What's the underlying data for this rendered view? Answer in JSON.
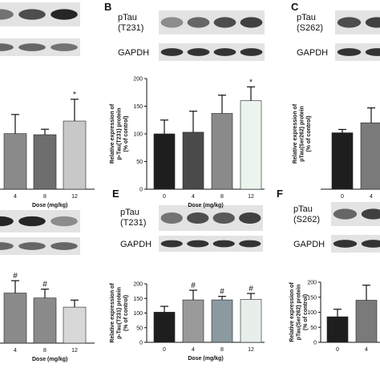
{
  "figure": {
    "panels": [
      {
        "letter": "",
        "blots": [
          "",
          ""
        ],
        "gel_bands": [
          [
            0.55,
            0.7,
            0.85
          ],
          [
            0.6,
            0.6,
            0.55
          ]
        ]
      },
      {
        "letter": "B",
        "blots": [
          "pTau\n(T231)",
          "GAPDH"
        ],
        "gel_bands": [
          [
            0.45,
            0.6,
            0.7,
            0.75
          ],
          [
            0.8,
            0.8,
            0.8,
            0.8
          ]
        ]
      },
      {
        "letter": "C",
        "blots": [
          "pTau\n(S262)",
          "GAPDH"
        ],
        "gel_bands": [
          [
            0.7,
            0.75
          ],
          [
            0.8,
            0.8
          ]
        ]
      },
      {
        "letter": "",
        "blots": [
          "",
          ""
        ],
        "gel_bands": [
          [
            0.85,
            0.85,
            0.45
          ],
          [
            0.6,
            0.6,
            0.6
          ]
        ]
      },
      {
        "letter": "E",
        "blots": [
          "pTau\n(T231)",
          "GAPDH"
        ],
        "gel_bands": [
          [
            0.55,
            0.7,
            0.65,
            0.75
          ],
          [
            0.8,
            0.8,
            0.8,
            0.8
          ]
        ]
      },
      {
        "letter": "F",
        "blots": [
          "pTau\n(S262)",
          "GAPDH"
        ],
        "gel_bands": [
          [
            0.6,
            0.75
          ],
          [
            0.8,
            0.8
          ]
        ]
      }
    ]
  },
  "chart_data": [
    {
      "type": "bar",
      "panel": "A",
      "categories": [
        "4",
        "8",
        "12"
      ],
      "values": [
        102,
        100,
        125
      ],
      "errors": [
        35,
        10,
        40
      ],
      "markers": [
        "",
        "",
        "*"
      ],
      "colors": [
        "#8a8a8a",
        "#6e6e6e",
        "#c8c8c8"
      ],
      "xlabel": "Dose (mg/kg)",
      "ylabel": "",
      "ylim": [
        0,
        200
      ],
      "ticks": []
    },
    {
      "type": "bar",
      "panel": "B",
      "categories": [
        "0",
        "4",
        "8",
        "12"
      ],
      "values": [
        100,
        103,
        137,
        160
      ],
      "errors": [
        25,
        38,
        33,
        25
      ],
      "markers": [
        "",
        "",
        "",
        "*"
      ],
      "colors": [
        "#1e1e1e",
        "#4a4a4a",
        "#8a8a8a",
        "#ecf4ee"
      ],
      "xlabel": "Dose (mg/kg)",
      "ylabel": "Relative expression of\np-Tau(T231) protein\n(% of control)",
      "ylim": [
        0,
        200
      ],
      "ticks": [
        "0",
        "50",
        "100",
        "150",
        "200"
      ]
    },
    {
      "type": "bar",
      "panel": "C",
      "categories": [
        "0",
        "4"
      ],
      "values": [
        102,
        120
      ],
      "errors": [
        6,
        27
      ],
      "markers": [
        "",
        ""
      ],
      "colors": [
        "#1e1e1e",
        "#7a7a7a"
      ],
      "xlabel": "",
      "ylabel": "Relative expression of\npTau(Ser262) protein\n(% of control)",
      "ylim": [
        0,
        200
      ],
      "ticks": []
    },
    {
      "type": "bar",
      "panel": "D",
      "categories": [
        "4",
        "8",
        "12"
      ],
      "values": [
        142,
        128,
        102
      ],
      "errors": [
        35,
        25,
        20
      ],
      "markers": [
        "#",
        "#",
        ""
      ],
      "colors": [
        "#8a8a8a",
        "#8a8a8a",
        "#d8d8d8"
      ],
      "xlabel": "Dose (mg/kg)",
      "ylabel": "",
      "ylim": [
        0,
        200
      ],
      "ticks": []
    },
    {
      "type": "bar",
      "panel": "E",
      "categories": [
        "0",
        "4",
        "8",
        "12"
      ],
      "values": [
        103,
        145,
        145,
        147
      ],
      "errors": [
        20,
        33,
        12,
        20
      ],
      "markers": [
        "",
        "#",
        "#",
        "#"
      ],
      "colors": [
        "#1e1e1e",
        "#9a9a9a",
        "#8a9aa0",
        "#e8eeea"
      ],
      "xlabel": "Dose (mg/kg)",
      "ylabel": "Relative expression of\np-Tau(T231) protein\n(% of control)",
      "ylim": [
        0,
        200
      ],
      "ticks": [
        "0",
        "50",
        "100",
        "150",
        "200"
      ]
    },
    {
      "type": "bar",
      "panel": "F",
      "categories": [
        "0",
        "4"
      ],
      "values": [
        85,
        140
      ],
      "errors": [
        25,
        50
      ],
      "markers": [
        "",
        ""
      ],
      "colors": [
        "#1e1e1e",
        "#7a7a7a"
      ],
      "xlabel": "",
      "ylabel": "Relative expression of\npTau(Ser262) protein\n(% of control)",
      "ylim": [
        0,
        200
      ],
      "ticks": [
        "0",
        "50",
        "100",
        "150",
        "200"
      ]
    }
  ]
}
